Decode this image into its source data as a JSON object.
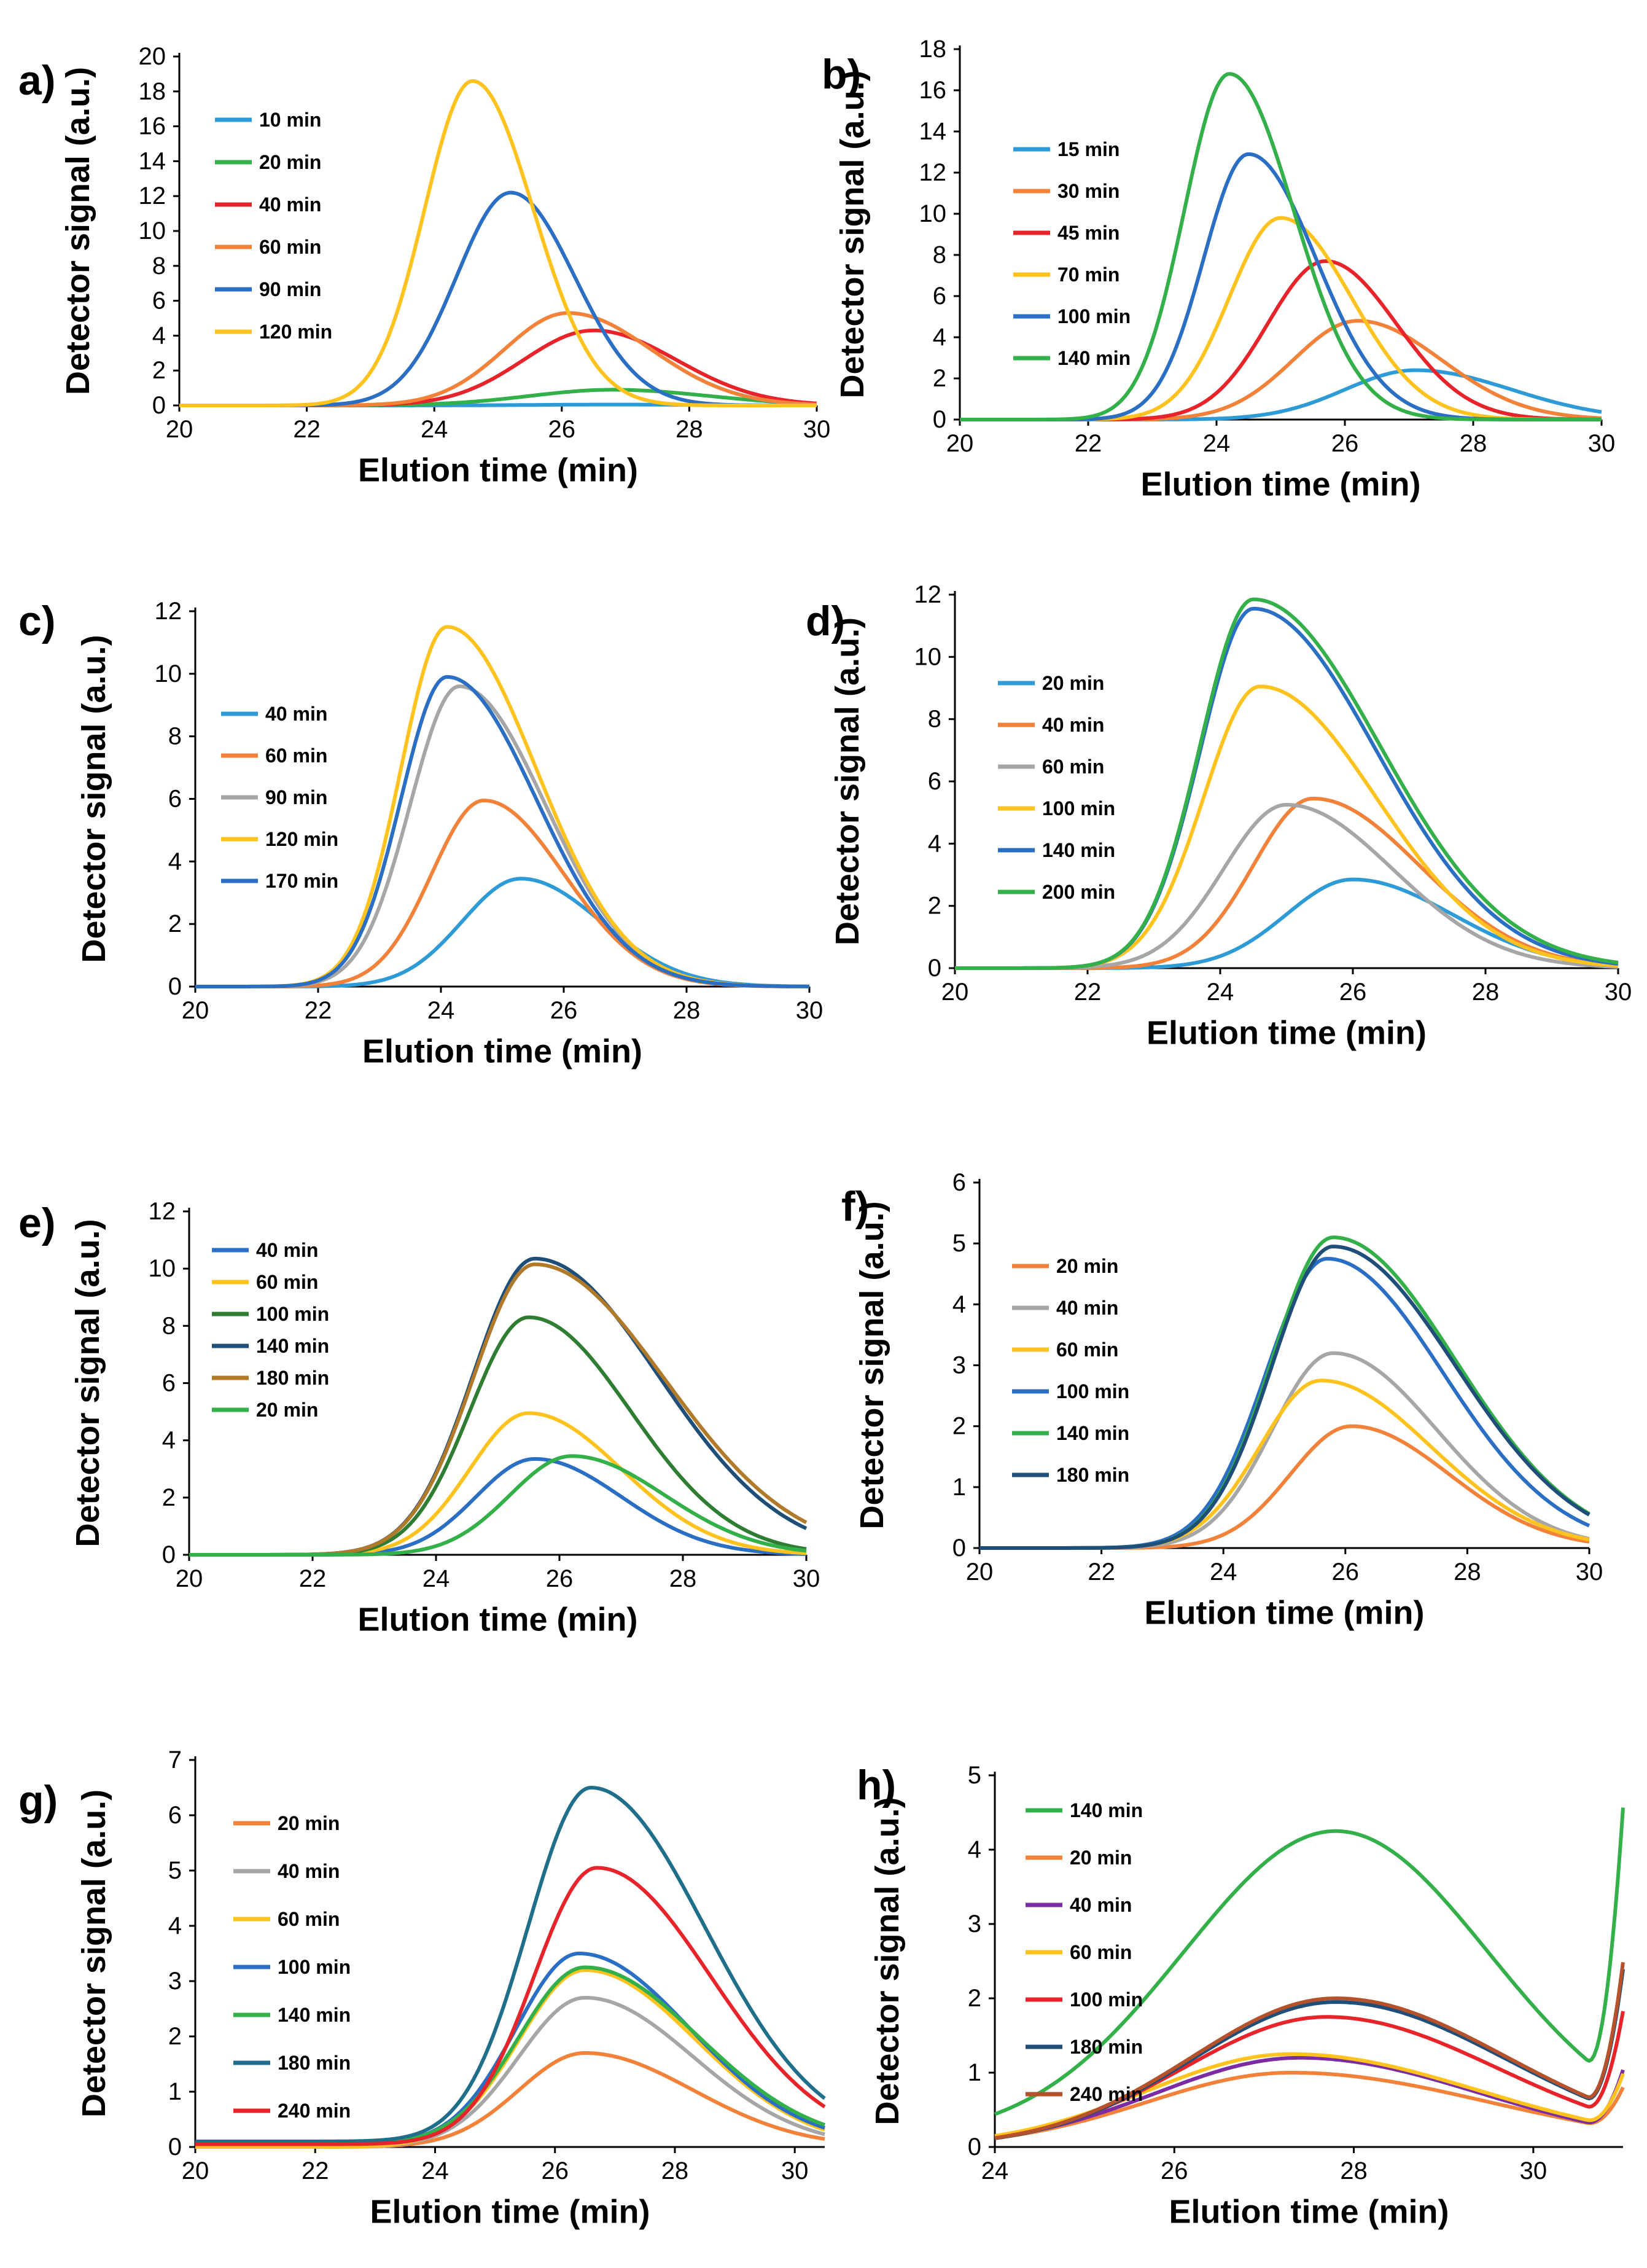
{
  "colors": {
    "lightblue": "#2E9BD6",
    "green": "#33B04A",
    "red": "#E8242B",
    "orange": "#F2823A",
    "blue": "#2B6FC4",
    "yellow": "#FFC21E",
    "gray": "#A6A6A6",
    "darkgreen": "#2E7D32",
    "navy": "#1F4E79",
    "brown": "#B07A2A",
    "teal": "#1F6F8B",
    "purple": "#7B2CA3",
    "brownred": "#B5522B",
    "axis": "#000000"
  },
  "chart_data": [
    {
      "panel": "a)",
      "type": "line",
      "xlabel": "Elution time (min)",
      "ylabel": "Detector signal (a.u.)",
      "xlim": [
        20,
        30
      ],
      "ylim": [
        0,
        20
      ],
      "xticks": [
        20,
        22,
        24,
        26,
        28,
        30
      ],
      "yticks": [
        0,
        2,
        4,
        6,
        8,
        10,
        12,
        14,
        16,
        18,
        20
      ],
      "series": [
        {
          "name": "10 min",
          "color": "lightblue",
          "peak": 26.8,
          "height": 0.05,
          "wl": 1.2,
          "wr": 1.4
        },
        {
          "name": "20 min",
          "color": "green",
          "peak": 26.8,
          "height": 0.9,
          "wl": 1.3,
          "wr": 1.5
        },
        {
          "name": "40 min",
          "color": "red",
          "peak": 26.5,
          "height": 4.3,
          "wl": 1.1,
          "wr": 1.3
        },
        {
          "name": "60 min",
          "color": "orange",
          "peak": 26.1,
          "height": 5.3,
          "wl": 1.0,
          "wr": 1.3
        },
        {
          "name": "90 min",
          "color": "blue",
          "peak": 25.2,
          "height": 12.2,
          "wl": 0.85,
          "wr": 1.0
        },
        {
          "name": "120 min",
          "color": "yellow",
          "peak": 24.6,
          "height": 18.6,
          "wl": 0.75,
          "wr": 0.95
        }
      ]
    },
    {
      "panel": "b)",
      "type": "line",
      "xlabel": "Elution time (min)",
      "ylabel": "Detector signal (a.u.)",
      "xlim": [
        20,
        30
      ],
      "ylim": [
        0,
        18
      ],
      "xticks": [
        20,
        22,
        24,
        26,
        28,
        30
      ],
      "yticks": [
        0,
        2,
        4,
        6,
        8,
        10,
        12,
        14,
        16,
        18
      ],
      "series": [
        {
          "name": "15 min",
          "color": "lightblue",
          "peak": 27.1,
          "height": 2.4,
          "wl": 1.1,
          "wr": 1.5
        },
        {
          "name": "30 min",
          "color": "orange",
          "peak": 26.2,
          "height": 4.8,
          "wl": 1.0,
          "wr": 1.3
        },
        {
          "name": "45 min",
          "color": "red",
          "peak": 25.7,
          "height": 7.7,
          "wl": 0.9,
          "wr": 1.1
        },
        {
          "name": "70 min",
          "color": "yellow",
          "peak": 25.0,
          "height": 9.8,
          "wl": 0.8,
          "wr": 1.1
        },
        {
          "name": "100 min",
          "color": "blue",
          "peak": 24.5,
          "height": 12.9,
          "wl": 0.7,
          "wr": 1.05
        },
        {
          "name": "140 min",
          "color": "green",
          "peak": 24.2,
          "height": 16.8,
          "wl": 0.7,
          "wr": 1.0
        }
      ]
    },
    {
      "panel": "c)",
      "type": "line",
      "xlabel": "Elution time (min)",
      "ylabel": "Detector signal (a.u.)",
      "xlim": [
        20,
        30
      ],
      "ylim": [
        0,
        12
      ],
      "xticks": [
        20,
        22,
        24,
        26,
        28,
        30
      ],
      "yticks": [
        0,
        2,
        4,
        6,
        8,
        10,
        12
      ],
      "series": [
        {
          "name": "40 min",
          "color": "lightblue",
          "peak": 25.3,
          "height": 3.45,
          "wl": 0.95,
          "wr": 1.3
        },
        {
          "name": "60 min",
          "color": "orange",
          "peak": 24.7,
          "height": 5.95,
          "wl": 0.85,
          "wr": 1.3
        },
        {
          "name": "90 min",
          "color": "gray",
          "peak": 24.3,
          "height": 9.6,
          "wl": 0.8,
          "wr": 1.4
        },
        {
          "name": "120 min",
          "color": "yellow",
          "peak": 24.1,
          "height": 11.5,
          "wl": 0.75,
          "wr": 1.45
        },
        {
          "name": "170 min",
          "color": "blue",
          "peak": 24.1,
          "height": 9.9,
          "wl": 0.75,
          "wr": 1.45
        }
      ]
    },
    {
      "panel": "d)",
      "type": "line",
      "xlabel": "Elution time (min)",
      "ylabel": "Detector signal (a.u.)",
      "xlim": [
        20,
        30
      ],
      "ylim": [
        0,
        12
      ],
      "xticks": [
        20,
        22,
        24,
        26,
        28,
        30
      ],
      "yticks": [
        0,
        2,
        4,
        6,
        8,
        10,
        12
      ],
      "series": [
        {
          "name": "20 min",
          "color": "lightblue",
          "peak": 26.0,
          "height": 2.85,
          "wl": 1.0,
          "wr": 1.5
        },
        {
          "name": "40 min",
          "color": "orange",
          "peak": 25.4,
          "height": 5.45,
          "wl": 0.9,
          "wr": 1.6
        },
        {
          "name": "60 min",
          "color": "gray",
          "peak": 25.0,
          "height": 5.25,
          "wl": 0.95,
          "wr": 1.6
        },
        {
          "name": "100 min",
          "color": "yellow",
          "peak": 24.6,
          "height": 9.05,
          "wl": 0.85,
          "wr": 1.75
        },
        {
          "name": "140 min",
          "color": "blue",
          "peak": 24.5,
          "height": 11.55,
          "wl": 0.8,
          "wr": 1.85
        },
        {
          "name": "200 min",
          "color": "green",
          "peak": 24.5,
          "height": 11.85,
          "wl": 0.8,
          "wr": 1.9
        }
      ]
    },
    {
      "panel": "e)",
      "type": "line",
      "xlabel": "Elution time (min)",
      "ylabel": "Detector signal (a.u.)",
      "xlim": [
        20,
        30
      ],
      "ylim": [
        0,
        12
      ],
      "xticks": [
        20,
        22,
        24,
        26,
        28,
        30
      ],
      "yticks": [
        0,
        2,
        4,
        6,
        8,
        10,
        12
      ],
      "series": [
        {
          "name": "40 min",
          "color": "blue",
          "peak": 25.6,
          "height": 3.35,
          "wl": 0.95,
          "wr": 1.4
        },
        {
          "name": "60 min",
          "color": "yellow",
          "peak": 25.5,
          "height": 4.95,
          "wl": 0.95,
          "wr": 1.5
        },
        {
          "name": "100 min",
          "color": "darkgreen",
          "peak": 25.5,
          "height": 8.3,
          "wl": 0.95,
          "wr": 1.65
        },
        {
          "name": "140 min",
          "color": "navy",
          "peak": 25.6,
          "height": 10.35,
          "wl": 1.0,
          "wr": 2.0
        },
        {
          "name": "180 min",
          "color": "brown",
          "peak": 25.6,
          "height": 10.15,
          "wl": 1.0,
          "wr": 2.1
        },
        {
          "name": "20 min",
          "color": "green",
          "peak": 26.2,
          "height": 3.45,
          "wl": 1.0,
          "wr": 1.5
        }
      ]
    },
    {
      "panel": "f)",
      "type": "line",
      "xlabel": "Elution time (min)",
      "ylabel": "Detector signal (a.u.)",
      "xlim": [
        20,
        30
      ],
      "ylim": [
        0,
        6
      ],
      "xticks": [
        20,
        22,
        24,
        26,
        28,
        30
      ],
      "yticks": [
        0,
        1,
        2,
        3,
        4,
        5,
        6
      ],
      "series": [
        {
          "name": "20 min",
          "color": "orange",
          "peak": 26.1,
          "height": 2.0,
          "wl": 1.0,
          "wr": 1.6
        },
        {
          "name": "40 min",
          "color": "gray",
          "peak": 25.8,
          "height": 3.2,
          "wl": 1.0,
          "wr": 1.7
        },
        {
          "name": "60 min",
          "color": "yellow",
          "peak": 25.6,
          "height": 2.75,
          "wl": 1.0,
          "wr": 1.8
        },
        {
          "name": "100 min",
          "color": "blue",
          "peak": 25.7,
          "height": 4.75,
          "wl": 1.0,
          "wr": 1.9
        },
        {
          "name": "140 min",
          "color": "green",
          "peak": 25.8,
          "height": 5.1,
          "wl": 1.0,
          "wr": 2.0
        },
        {
          "name": "180 min",
          "color": "navy",
          "peak": 25.8,
          "height": 4.95,
          "wl": 1.0,
          "wr": 2.0
        }
      ]
    },
    {
      "panel": "g)",
      "type": "line",
      "xlabel": "Elution time (min)",
      "ylabel": "Detector signal (a.u.)",
      "xlim": [
        20,
        30.5
      ],
      "ylim": [
        0,
        7
      ],
      "xticks": [
        20,
        22,
        24,
        26,
        28,
        30
      ],
      "yticks": [
        0,
        1,
        2,
        3,
        4,
        5,
        6,
        7
      ],
      "series": [
        {
          "name": "20 min",
          "color": "orange",
          "peak": 26.5,
          "height": 1.7,
          "wl": 1.1,
          "wr": 1.8,
          "base": 0.0
        },
        {
          "name": "40 min",
          "color": "gray",
          "peak": 26.5,
          "height": 2.7,
          "wl": 1.1,
          "wr": 1.8,
          "base": 0.0
        },
        {
          "name": "60 min",
          "color": "yellow",
          "peak": 26.5,
          "height": 3.2,
          "wl": 1.1,
          "wr": 1.85,
          "base": 0.0
        },
        {
          "name": "100 min",
          "color": "blue",
          "peak": 26.4,
          "height": 3.45,
          "wl": 1.05,
          "wr": 1.85,
          "base": 0.05
        },
        {
          "name": "140 min",
          "color": "green",
          "peak": 26.5,
          "height": 3.2,
          "wl": 1.1,
          "wr": 1.9,
          "base": 0.05
        },
        {
          "name": "180 min",
          "color": "teal",
          "peak": 26.6,
          "height": 6.4,
          "wl": 1.05,
          "wr": 1.9,
          "base": 0.1
        },
        {
          "name": "240 min",
          "color": "red",
          "peak": 26.7,
          "height": 5.0,
          "wl": 1.05,
          "wr": 1.9,
          "base": 0.05
        }
      ]
    },
    {
      "panel": "h)",
      "type": "line",
      "xlabel": "Elution time (min)",
      "ylabel": "Detector signal (a.u.)",
      "xlim": [
        24,
        31
      ],
      "ylim": [
        0,
        5
      ],
      "xticks": [
        24,
        26,
        28,
        30
      ],
      "yticks": [
        0,
        1,
        2,
        3,
        4,
        5
      ],
      "series": [
        {
          "name": "140 min",
          "color": "green",
          "peak": 27.8,
          "height": 4.15,
          "wl": 1.7,
          "wr": 1.7,
          "base": 0.1,
          "tail": 2.35
        },
        {
          "name": "20 min",
          "color": "orange",
          "peak": 27.3,
          "height": 1.0,
          "wl": 1.6,
          "wr": 2.2,
          "base": 0.0,
          "tail": 0.35
        },
        {
          "name": "40 min",
          "color": "purple",
          "peak": 27.4,
          "height": 1.2,
          "wl": 1.6,
          "wr": 2.0,
          "base": 0.0,
          "tail": 0.5
        },
        {
          "name": "60 min",
          "color": "yellow",
          "peak": 27.3,
          "height": 1.25,
          "wl": 1.6,
          "wr": 2.1,
          "base": 0.0,
          "tail": 0.45
        },
        {
          "name": "100 min",
          "color": "red",
          "peak": 27.7,
          "height": 1.75,
          "wl": 1.6,
          "wr": 1.9,
          "base": 0.0,
          "tail": 0.9
        },
        {
          "name": "180 min",
          "color": "navy",
          "peak": 27.8,
          "height": 1.95,
          "wl": 1.6,
          "wr": 1.9,
          "base": 0.0,
          "tail": 1.2
        },
        {
          "name": "240 min",
          "color": "brownred",
          "peak": 27.8,
          "height": 2.0,
          "wl": 1.6,
          "wr": 1.9,
          "base": 0.0,
          "tail": 1.25
        }
      ]
    }
  ]
}
